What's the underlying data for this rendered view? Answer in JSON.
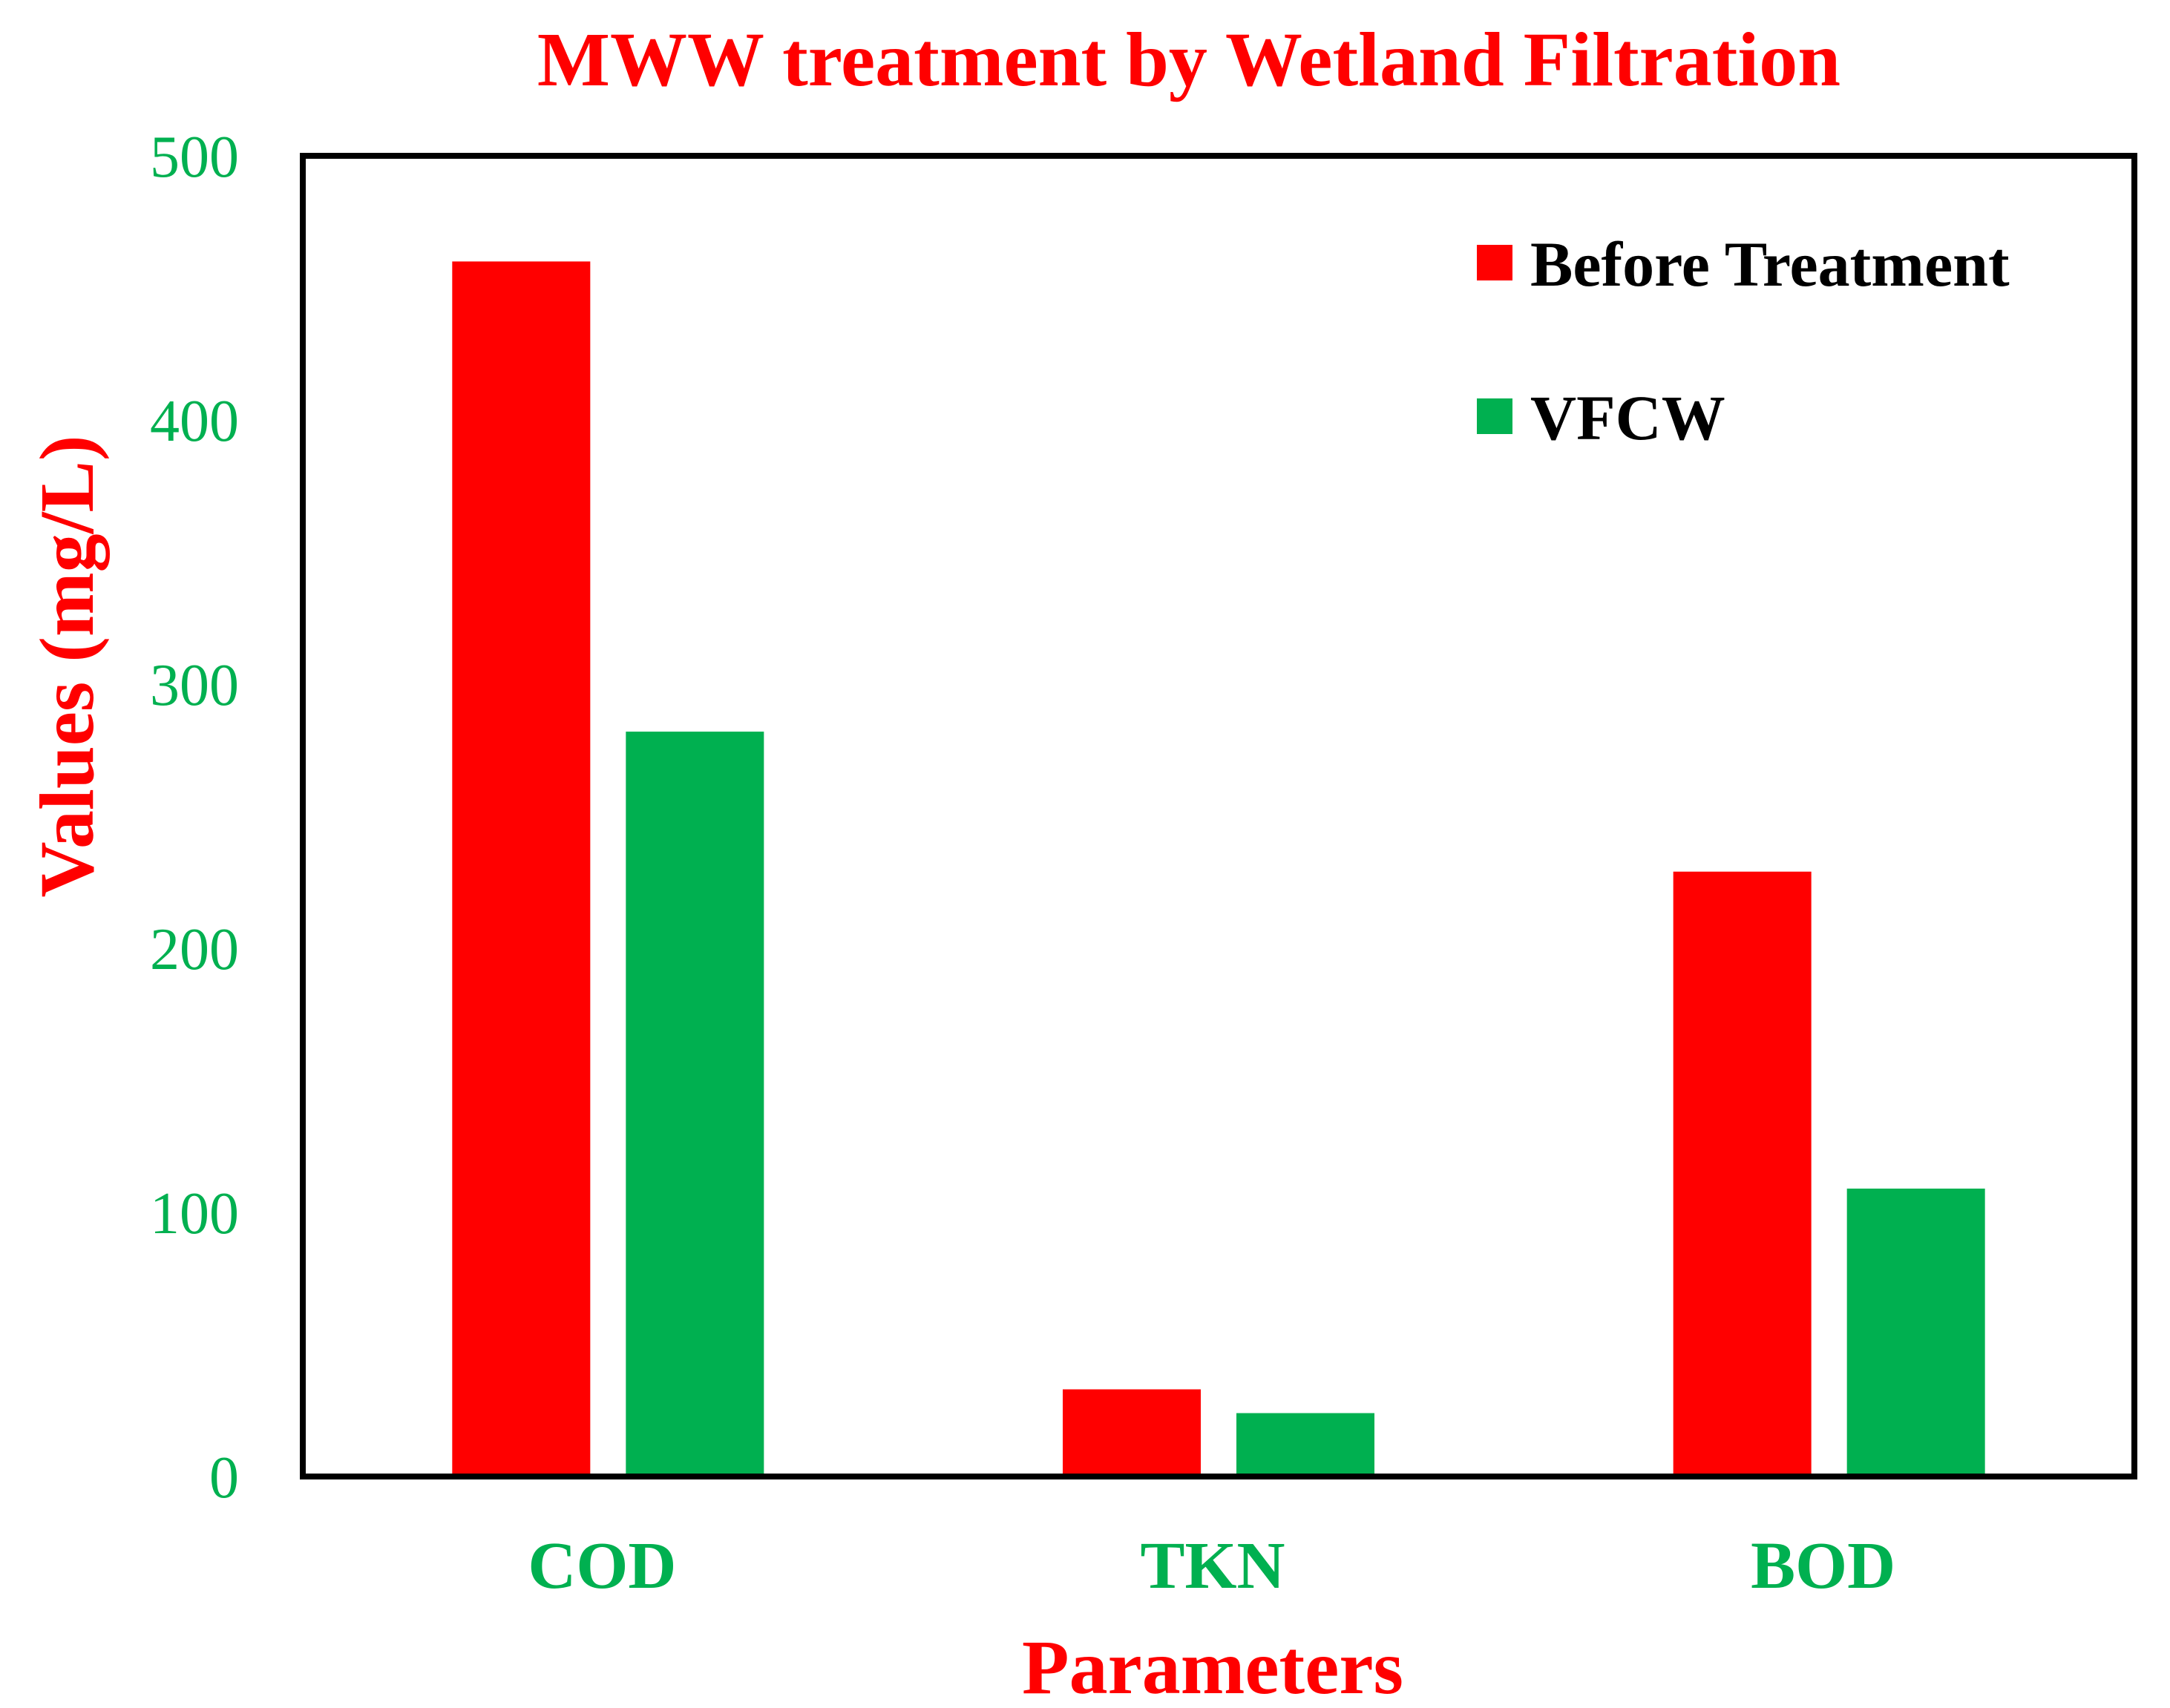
{
  "colors": {
    "before": "#ff0000",
    "vfcw": "#00b050",
    "title": "#ff0000",
    "ytitle": "#ff0000",
    "xtitle": "#ff0000",
    "ticks": "#00b050",
    "frame": "#000000"
  },
  "chart_data": {
    "type": "bar",
    "title": "MWW treatment by Wetland Filtration",
    "xlabel": "Parameters",
    "ylabel": "Values (mg/L)",
    "ylim": [
      0,
      500
    ],
    "yticks": [
      "0",
      "100",
      "200",
      "300",
      "400",
      "500"
    ],
    "categories": [
      "COD",
      "TKN",
      "BOD"
    ],
    "series": [
      {
        "name": "Before Treatment",
        "values": [
          460,
          33,
          229
        ]
      },
      {
        "name": "VFCW",
        "values": [
          282,
          24,
          109
        ]
      }
    ],
    "grid": false,
    "legend": "top-right"
  }
}
